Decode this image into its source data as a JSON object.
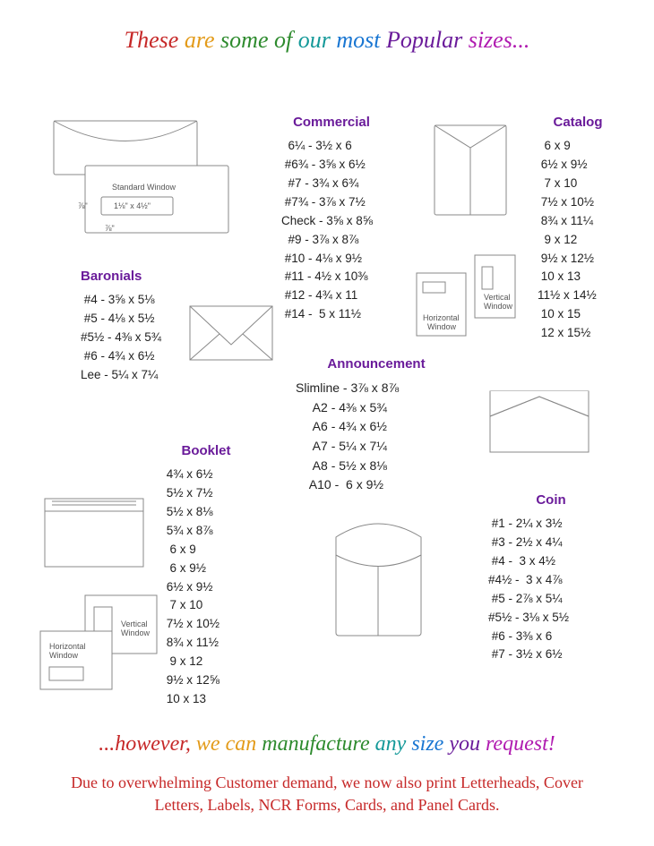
{
  "headline_words": [
    {
      "t": "These ",
      "c": "#c62828"
    },
    {
      "t": "are ",
      "c": "#e39b1a"
    },
    {
      "t": "some ",
      "c": "#2e8b2e"
    },
    {
      "t": "of ",
      "c": "#2e8b2e"
    },
    {
      "t": "our ",
      "c": "#149999"
    },
    {
      "t": "most ",
      "c": "#1976d2"
    },
    {
      "t": "Popular ",
      "c": "#6a1b9a"
    },
    {
      "t": "sizes...",
      "c": "#b01bb0"
    }
  ],
  "tagline_words": [
    {
      "t": "...however, ",
      "c": "#c62828"
    },
    {
      "t": "we ",
      "c": "#e39b1a"
    },
    {
      "t": "can ",
      "c": "#e39b1a"
    },
    {
      "t": "manufacture ",
      "c": "#2e8b2e"
    },
    {
      "t": "any ",
      "c": "#149999"
    },
    {
      "t": "size ",
      "c": "#1976d2"
    },
    {
      "t": "you ",
      "c": "#6a1b9a"
    },
    {
      "t": "request!",
      "c": "#b01bb0"
    }
  ],
  "bottom_note": "Due to overwhelming Customer demand, we now also print Letterheads, Cover Letters, Labels, NCR Forms, Cards, and Panel Cards.",
  "sections": {
    "commercial": {
      "heading": "Commercial",
      "lines": [
        "  6¼ - 3½ x 6",
        " #6¾ - 3⅝ x 6½",
        "  #7 - 3¾ x 6¾",
        " #7¾ - 3⅞ x 7½",
        "Check - 3⅝ x 8⅝",
        "  #9 - 3⅞ x 8⅞",
        " #10 - 4⅛ x 9½",
        " #11 - 4½ x 10⅜",
        " #12 - 4¾ x 11",
        " #14 -  5 x 11½"
      ]
    },
    "catalog": {
      "heading": "Catalog",
      "lines": [
        "  6 x 9",
        " 6½ x 9½",
        "  7 x 10",
        " 7½ x 10½",
        " 8¾ x 11¼",
        "  9 x 12",
        " 9½ x 12½",
        " 10 x 13",
        "11½ x 14½",
        " 10 x 15",
        " 12 x 15½"
      ]
    },
    "baronials": {
      "heading": "Baronials",
      "lines": [
        " #4 - 3⅝ x 5⅛",
        " #5 - 4⅛ x 5½",
        "#5½ - 4⅜ x 5¾",
        " #6 - 4¾ x 6½",
        "Lee - 5¼ x 7¼"
      ]
    },
    "announcement": {
      "heading": "Announcement",
      "lines": [
        "Slimline - 3⅞ x 8⅞",
        "     A2 - 4⅜ x 5¾",
        "     A6 - 4¾ x 6½",
        "     A7 - 5¼ x 7¼",
        "     A8 - 5½ x 8⅛",
        "    A10 -  6 x 9½"
      ]
    },
    "booklet": {
      "heading": "Booklet",
      "lines": [
        " 4¾ x 6½",
        " 5½ x 7½",
        " 5½ x 8⅛",
        " 5¾ x 8⅞",
        "  6 x 9",
        "  6 x 9½",
        " 6½ x 9½",
        "  7 x 10",
        " 7½ x 10½",
        " 8¾ x 11½",
        "  9 x 12",
        " 9½ x 12⅝",
        " 10 x 13"
      ]
    },
    "coin": {
      "heading": "Coin",
      "lines": [
        " #1 - 2¼ x 3½",
        " #3 - 2½ x 4¼",
        " #4 -  3 x 4½",
        "#4½ -  3 x 4⅞",
        " #5 - 2⅞ x 5¼",
        "#5½ - 3⅛ x 5½",
        " #6 - 3⅜ x 6",
        " #7 - 3½ x 6½"
      ]
    }
  },
  "labels": {
    "standard_window": "Standard Window",
    "horizontal_window": "Horizontal\nWindow",
    "vertical_window": "Vertical\nWindow",
    "dim_small": "1⅛\" x 4½\""
  },
  "style": {
    "heading_color": "#6a1b9a",
    "text_color": "#222222",
    "note_color": "#c62828",
    "line_color": "#888888",
    "background": "#ffffff",
    "headline_fontsize": 26,
    "tagline_fontsize": 24,
    "heading_fontsize": 15,
    "body_fontsize": 13.5,
    "note_fontsize": 18
  }
}
